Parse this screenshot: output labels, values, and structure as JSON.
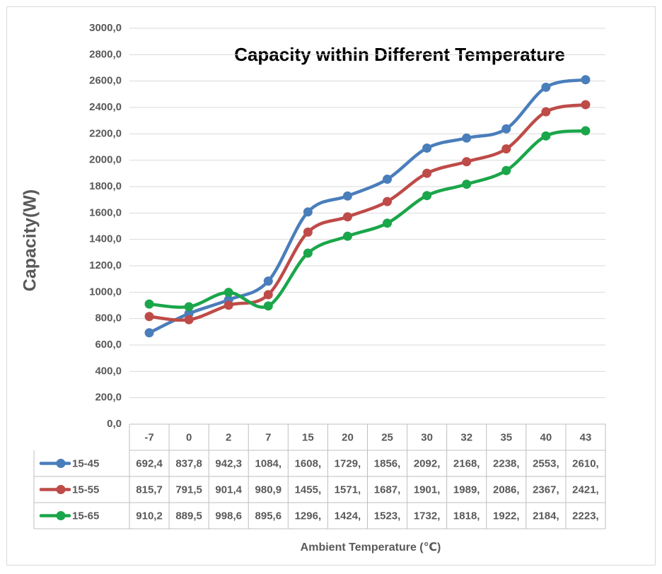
{
  "chart_data": {
    "type": "line",
    "title": "Capacity within Different Temperature",
    "x_label": "Ambient Temperature (℃)",
    "y_label": "Capacity(W)",
    "categories": [
      "-7",
      "0",
      "2",
      "7",
      "15",
      "20",
      "25",
      "30",
      "32",
      "35",
      "40",
      "43"
    ],
    "series": [
      {
        "name": "15-45",
        "color": "#4a7ebb",
        "values": [
          692.4,
          837.8,
          942.3,
          1084,
          1608,
          1729,
          1856,
          2092,
          2168,
          2238,
          2553,
          2610
        ],
        "value_labels": [
          "692,4",
          "837,8",
          "942,3",
          "1084,",
          "1608,",
          "1729,",
          "1856,",
          "2092,",
          "2168,",
          "2238,",
          "2553,",
          "2610,"
        ]
      },
      {
        "name": "15-55",
        "color": "#be4b48",
        "values": [
          815.7,
          791.5,
          901.4,
          980.9,
          1455,
          1571,
          1687,
          1901,
          1989,
          2086,
          2367,
          2421
        ],
        "value_labels": [
          "815,7",
          "791,5",
          "901,4",
          "980,9",
          "1455,",
          "1571,",
          "1687,",
          "1901,",
          "1989,",
          "2086,",
          "2367,",
          "2421,"
        ]
      },
      {
        "name": "15-65",
        "color": "#1aa64a",
        "values": [
          910.2,
          889.5,
          998.6,
          895.6,
          1296,
          1424,
          1523,
          1732,
          1818,
          1922,
          2184,
          2223
        ],
        "value_labels": [
          "910,2",
          "889,5",
          "998,6",
          "895,6",
          "1296,",
          "1424,",
          "1523,",
          "1732,",
          "1818,",
          "1922,",
          "2184,",
          "2223,"
        ]
      }
    ],
    "ylim": [
      0,
      3000
    ],
    "yticks": [
      {
        "value": 0,
        "label": "0,0"
      },
      {
        "value": 200,
        "label": "200,0"
      },
      {
        "value": 400,
        "label": "400,0"
      },
      {
        "value": 600,
        "label": "600,0"
      },
      {
        "value": 800,
        "label": "800,0"
      },
      {
        "value": 1000,
        "label": "1000,0"
      },
      {
        "value": 1200,
        "label": "1200,0"
      },
      {
        "value": 1400,
        "label": "1400,0"
      },
      {
        "value": 1600,
        "label": "1600,0"
      },
      {
        "value": 1800,
        "label": "1800,0"
      },
      {
        "value": 2000,
        "label": "2000,0"
      },
      {
        "value": 2200,
        "label": "2200,0"
      },
      {
        "value": 2400,
        "label": "2400,0"
      },
      {
        "value": 2600,
        "label": "2600,0"
      },
      {
        "value": 2800,
        "label": "2800,0"
      },
      {
        "value": 3000,
        "label": "3000,0"
      }
    ],
    "grid": true,
    "smooth": true,
    "data_table": true
  }
}
